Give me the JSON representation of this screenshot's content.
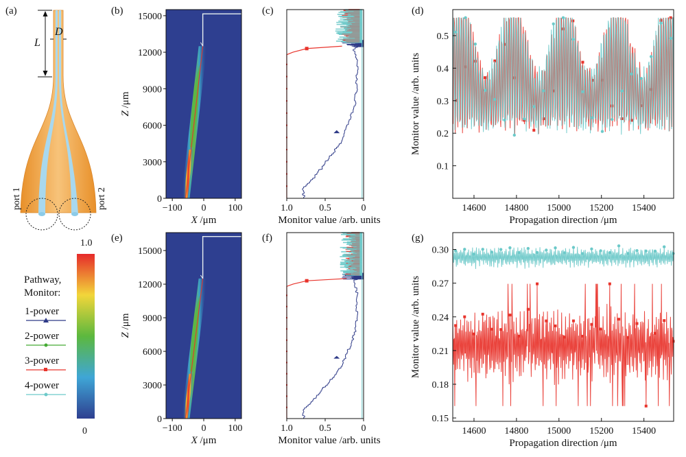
{
  "panel_labels": {
    "a": "(a)",
    "b": "(b)",
    "c": "(c)",
    "d": "(d)",
    "e": "(e)",
    "f": "(f)",
    "g": "(g)"
  },
  "diagram": {
    "length_label": "L",
    "diameter_label": "D",
    "port1_label": "port 1",
    "port2_label": "port 2"
  },
  "legend": {
    "title_line1": "Pathway,",
    "title_line2": "Monitor:",
    "entries": [
      {
        "label": "1-power",
        "color": "#2e3a87",
        "marker": "triangle"
      },
      {
        "label": "2-power",
        "color": "#44aa33",
        "marker": "dot"
      },
      {
        "label": "3-power",
        "color": "#e8342c",
        "marker": "square"
      },
      {
        "label": "4-power",
        "color": "#6cc9c9",
        "marker": "dot"
      }
    ],
    "colorbar_max": "1.0",
    "colorbar_min": "0"
  },
  "colors": {
    "field_background": "#2e3f90",
    "power1": "#2e3a87",
    "power2": "#44aa33",
    "power3": "#e8342c",
    "power4": "#6cc9c9",
    "taper_outer": "#f0a53a",
    "taper_core": "#a8d8ee"
  },
  "chart_data": [
    {
      "id": "b",
      "type": "heatmap",
      "xlabel_var": "X",
      "xlabel_unit": " /μm",
      "ylabel_var": "Z",
      "ylabel_unit": " /μm",
      "xlim": [
        -120,
        120
      ],
      "ylim": [
        0,
        15500
      ],
      "xticks": [
        -100,
        0,
        100
      ],
      "xtick_labels": [
        "−100",
        "0",
        "100"
      ],
      "yticks": [
        0,
        3000,
        6000,
        9000,
        12000,
        15000
      ],
      "ytick_labels": [
        "0",
        "3000",
        "6000",
        "9000",
        "12000",
        "15000"
      ]
    },
    {
      "id": "c",
      "type": "line",
      "xlabel": "Monitor value /arb. units",
      "xlim": [
        1.0,
        0
      ],
      "ylim": [
        0,
        15500
      ],
      "xticks": [
        1.0,
        0.5,
        0
      ],
      "xtick_labels": [
        "1.0",
        "0.5",
        "0"
      ],
      "series": [
        {
          "name": "1-power",
          "z": [
            0,
            800,
            1500,
            3000,
            4500,
            6000,
            7500,
            9000,
            10500,
            11500,
            12200,
            12700
          ],
          "values": [
            0.78,
            0.78,
            0.66,
            0.48,
            0.3,
            0.2,
            0.12,
            0.09,
            0.08,
            0.09,
            0.14,
            0.02
          ]
        },
        {
          "name": "3-power",
          "z": [
            0,
            11800,
            12000,
            12300,
            12500,
            13000,
            15500
          ],
          "values": [
            1.0,
            1.0,
            0.92,
            0.74,
            0.28,
            0.28,
            0.28
          ]
        }
      ]
    },
    {
      "id": "d",
      "type": "line",
      "xlabel": "Propagation direction /μm",
      "ylabel": "Monitor value /arb. units",
      "xlim": [
        14500,
        15540
      ],
      "ylim": [
        0,
        0.58
      ],
      "xticks": [
        14600,
        14800,
        15000,
        15200,
        15400
      ],
      "yticks": [
        0.1,
        0.2,
        0.3,
        0.4,
        0.5
      ],
      "ytick_labels": [
        "0.1",
        "0.2",
        "0.3",
        "0.4",
        "0.5"
      ],
      "series": [
        {
          "name": "3-power",
          "mean": 0.3,
          "amp": 0.26,
          "envelope": 0.5
        },
        {
          "name": "4-power",
          "mean": 0.3,
          "amp": 0.26,
          "envelope": 0.5
        }
      ]
    },
    {
      "id": "e",
      "type": "heatmap",
      "xlabel_var": "X",
      "xlabel_unit": " /μm",
      "ylabel_var": "Z",
      "ylabel_unit": " /μm",
      "xlim": [
        -120,
        120
      ],
      "ylim": [
        0,
        16600
      ],
      "xticks": [
        -100,
        0,
        100
      ],
      "xtick_labels": [
        "−100",
        "0",
        "100"
      ],
      "yticks": [
        0,
        3000,
        6000,
        9000,
        12000,
        15000
      ],
      "ytick_labels": [
        "0",
        "3000",
        "6000",
        "9000",
        "12000",
        "15000"
      ]
    },
    {
      "id": "f",
      "type": "line",
      "xlabel": "Monitor value /arb. units",
      "xlim": [
        1.0,
        0
      ],
      "ylim": [
        0,
        16600
      ],
      "xticks": [
        1.0,
        0.5,
        0
      ],
      "xtick_labels": [
        "1.0",
        "0.5",
        "0"
      ],
      "series": [
        {
          "name": "1-power",
          "z": [
            0,
            800,
            1500,
            3000,
            4500,
            6000,
            7500,
            9000,
            10500,
            11500,
            12200,
            12700
          ],
          "values": [
            0.78,
            0.78,
            0.66,
            0.48,
            0.3,
            0.2,
            0.12,
            0.09,
            0.08,
            0.09,
            0.14,
            0.02
          ]
        },
        {
          "name": "3-power",
          "z": [
            0,
            11800,
            12000,
            12300,
            12500,
            13000,
            16600
          ],
          "values": [
            1.0,
            1.0,
            0.92,
            0.74,
            0.22,
            0.22,
            0.22
          ]
        }
      ]
    },
    {
      "id": "g",
      "type": "line",
      "xlabel": "Propagation direction /μm",
      "ylabel": "Monitor value /arb. units",
      "xlim": [
        14500,
        15540
      ],
      "ylim": [
        0.147,
        0.315
      ],
      "xticks": [
        14600,
        14800,
        15000,
        15200,
        15400
      ],
      "yticks": [
        0.15,
        0.18,
        0.21,
        0.24,
        0.27,
        0.3
      ],
      "ytick_labels": [
        "0.15",
        "0.18",
        "0.21",
        "0.24",
        "0.27",
        "0.30"
      ],
      "series": [
        {
          "name": "4-power",
          "mean": 0.293,
          "amp": 0.009
        },
        {
          "name": "3-power",
          "mean": 0.215,
          "amp": 0.032
        }
      ]
    }
  ]
}
